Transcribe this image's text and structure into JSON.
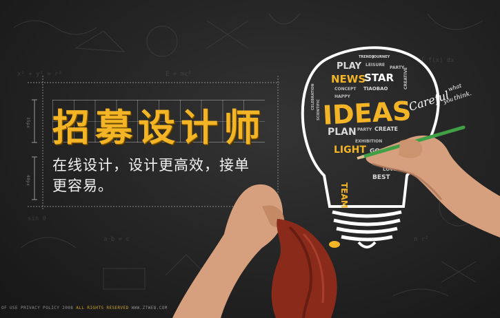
{
  "headline": "招募设计师",
  "subtitle_line1": "在线设计，设计更高效，接单",
  "subtitle_line2": "更容易。",
  "dimension_labels": [
    "35px",
    "40px"
  ],
  "bulb": {
    "main_word": "IDEAS",
    "words": [
      "TRENDS",
      "JOURNEY",
      "PLAY",
      "LEISURE",
      "PARTY",
      "NEWS",
      "STAR",
      "CONCEPT",
      "WORKING",
      "LEISURE",
      "CREATIVE",
      "CELEBRATION",
      "EVENTS",
      "TIAOBAO",
      "HAPPY",
      "TREND",
      "SCIENTIFIC",
      "PARTY",
      "CREATE",
      "PLAN",
      "EXHIBITION",
      "LIGHT",
      "GOOD",
      "IDEA",
      "TALK",
      "WEB",
      "OPEN",
      "LOVE",
      "TEAM",
      "BEST"
    ]
  },
  "careful_main": "Careful",
  "careful_what": "what",
  "careful_you": "you",
  "careful_think": "think.",
  "footer_left": "OF USE PRIVACY POLICY 2008",
  "footer_highlight": "ALL RIGHTS RESERVED",
  "footer_right": "WWW.ZTWEB.COM",
  "colors": {
    "accent": "#f3b526",
    "background": "#262626",
    "pencil": "#3fa046",
    "cloth": "#8a2a1a"
  }
}
